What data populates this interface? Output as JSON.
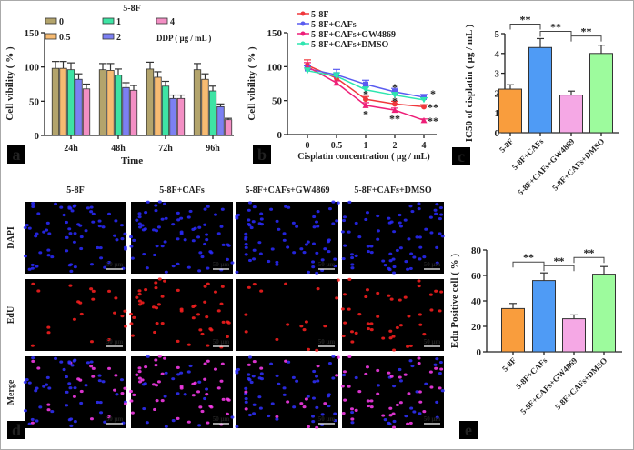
{
  "panel_labels": [
    "a",
    "b",
    "c",
    "d",
    "e"
  ],
  "chart_data": [
    {
      "id": "a",
      "type": "bar",
      "title": "5-8F",
      "xlabel": "Time",
      "ylabel": "Cell vibility ( % )",
      "ylim": [
        0,
        150
      ],
      "yticks": [
        "0",
        "50",
        "100",
        "150"
      ],
      "categories": [
        "24h",
        "48h",
        "72h",
        "96h"
      ],
      "legend_title": "DDP ( μg / mL )",
      "series": [
        {
          "name": "0",
          "color": "#b3a46c",
          "values": [
            98,
            96,
            97,
            96
          ],
          "errors": [
            10,
            9,
            10,
            9
          ]
        },
        {
          "name": "0.5",
          "color": "#f7bb72",
          "values": [
            98,
            95,
            85,
            82
          ],
          "errors": [
            10,
            10,
            8,
            8
          ]
        },
        {
          "name": "1",
          "color": "#3ee3a4",
          "values": [
            96,
            88,
            72,
            65
          ],
          "errors": [
            10,
            9,
            7,
            7
          ]
        },
        {
          "name": "2",
          "color": "#7c80f2",
          "values": [
            82,
            70,
            54,
            42
          ],
          "errors": [
            8,
            7,
            5,
            4
          ]
        },
        {
          "name": "4",
          "color": "#f38fc4",
          "values": [
            68,
            66,
            54,
            23
          ],
          "errors": [
            7,
            7,
            5,
            2
          ]
        }
      ]
    },
    {
      "id": "b",
      "type": "line",
      "xlabel": "Cisplatin concentration ( μg / mL)",
      "ylabel": "Cell vibility ( % )",
      "ylim": [
        0,
        150
      ],
      "yticks": [
        "0",
        "50",
        "100",
        "150"
      ],
      "x": [
        "0",
        "0.5",
        "1",
        "2",
        "4"
      ],
      "series": [
        {
          "name": "5-8F",
          "color": "#f0383c",
          "marker": "circle",
          "values": [
            102,
            83,
            52,
            45,
            41
          ],
          "errors": [
            8,
            4,
            4,
            4,
            3
          ]
        },
        {
          "name": "5-8F+CAFs",
          "color": "#5a5cf0",
          "marker": "square",
          "values": [
            97,
            88,
            74,
            63,
            55
          ],
          "errors": [
            4,
            8,
            6,
            5,
            4
          ]
        },
        {
          "name": "5-8F+CAFs+GW4869",
          "color": "#ee1f78",
          "marker": "triangle",
          "values": [
            100,
            76,
            43,
            36,
            21
          ],
          "errors": [
            6,
            3,
            4,
            3,
            2
          ]
        },
        {
          "name": "5-8F+CAFs+DMSO",
          "color": "#2ee6b0",
          "marker": "triangle-down",
          "values": [
            94,
            86,
            66,
            58,
            51
          ],
          "errors": [
            4,
            5,
            4,
            4,
            3
          ]
        }
      ],
      "annotations": [
        {
          "text": "*",
          "x": "1",
          "y": 62
        },
        {
          "text": "*",
          "x": "1",
          "y": 33
        },
        {
          "text": "*",
          "x": "2",
          "y": 72
        },
        {
          "text": "*",
          "x": "2",
          "y": 52
        },
        {
          "text": "**",
          "x": "2",
          "y": 26
        },
        {
          "text": "*",
          "x": "4",
          "y": 63
        },
        {
          "text": "**",
          "x": "4",
          "y": 43
        },
        {
          "text": "**",
          "x": "4",
          "y": 26
        }
      ]
    },
    {
      "id": "c",
      "type": "bar",
      "ylabel": "IC50 of cisplatin ( μg / mL )",
      "ylim": [
        0,
        5
      ],
      "yticks": [
        "0",
        "1",
        "2",
        "3",
        "4",
        "5"
      ],
      "categories": [
        "5-8F",
        "5-8F+CAFs",
        "5-8F+CAFs+GW4869",
        "5-8F+CAFs+DMSO"
      ],
      "colors": [
        "#f99d3d",
        "#4f9bf5",
        "#f5a8e5",
        "#9dfb9d"
      ],
      "values": [
        2.2,
        4.3,
        1.9,
        4.0
      ],
      "errors": [
        0.22,
        0.45,
        0.2,
        0.42
      ],
      "significance": [
        {
          "from": 0,
          "to": 1,
          "text": "**"
        },
        {
          "from": 1,
          "to": 2,
          "text": "**"
        },
        {
          "from": 2,
          "to": 3,
          "text": "**"
        }
      ]
    },
    {
      "id": "e",
      "type": "bar",
      "ylabel": "Edu Positive cell ( % )",
      "ylim": [
        0,
        80
      ],
      "yticks": [
        "0",
        "20",
        "40",
        "60",
        "80"
      ],
      "categories": [
        "5-8F",
        "5-8F+CAFs",
        "5-8F+CAFs+GW4869",
        "5-8F+CAFs+DMSO"
      ],
      "colors": [
        "#f99d3d",
        "#4f9bf5",
        "#f5a8e5",
        "#9dfb9d"
      ],
      "values": [
        34,
        56,
        26,
        61
      ],
      "errors": [
        4,
        6,
        3,
        6
      ],
      "significance": [
        {
          "from": 0,
          "to": 1,
          "text": "**"
        },
        {
          "from": 1,
          "to": 2,
          "text": "**"
        },
        {
          "from": 2,
          "to": 3,
          "text": "**"
        }
      ]
    }
  ],
  "microscopy": {
    "columns": [
      "5-8F",
      "5-8F+CAFs",
      "5-8F+CAFs+GW4869",
      "5-8F+CAFs+DMSO"
    ],
    "rows": [
      "DAPI",
      "EdU",
      "Merge"
    ],
    "scale_bar": "50 μm",
    "edu_density": [
      0.25,
      0.55,
      0.2,
      0.6
    ]
  }
}
